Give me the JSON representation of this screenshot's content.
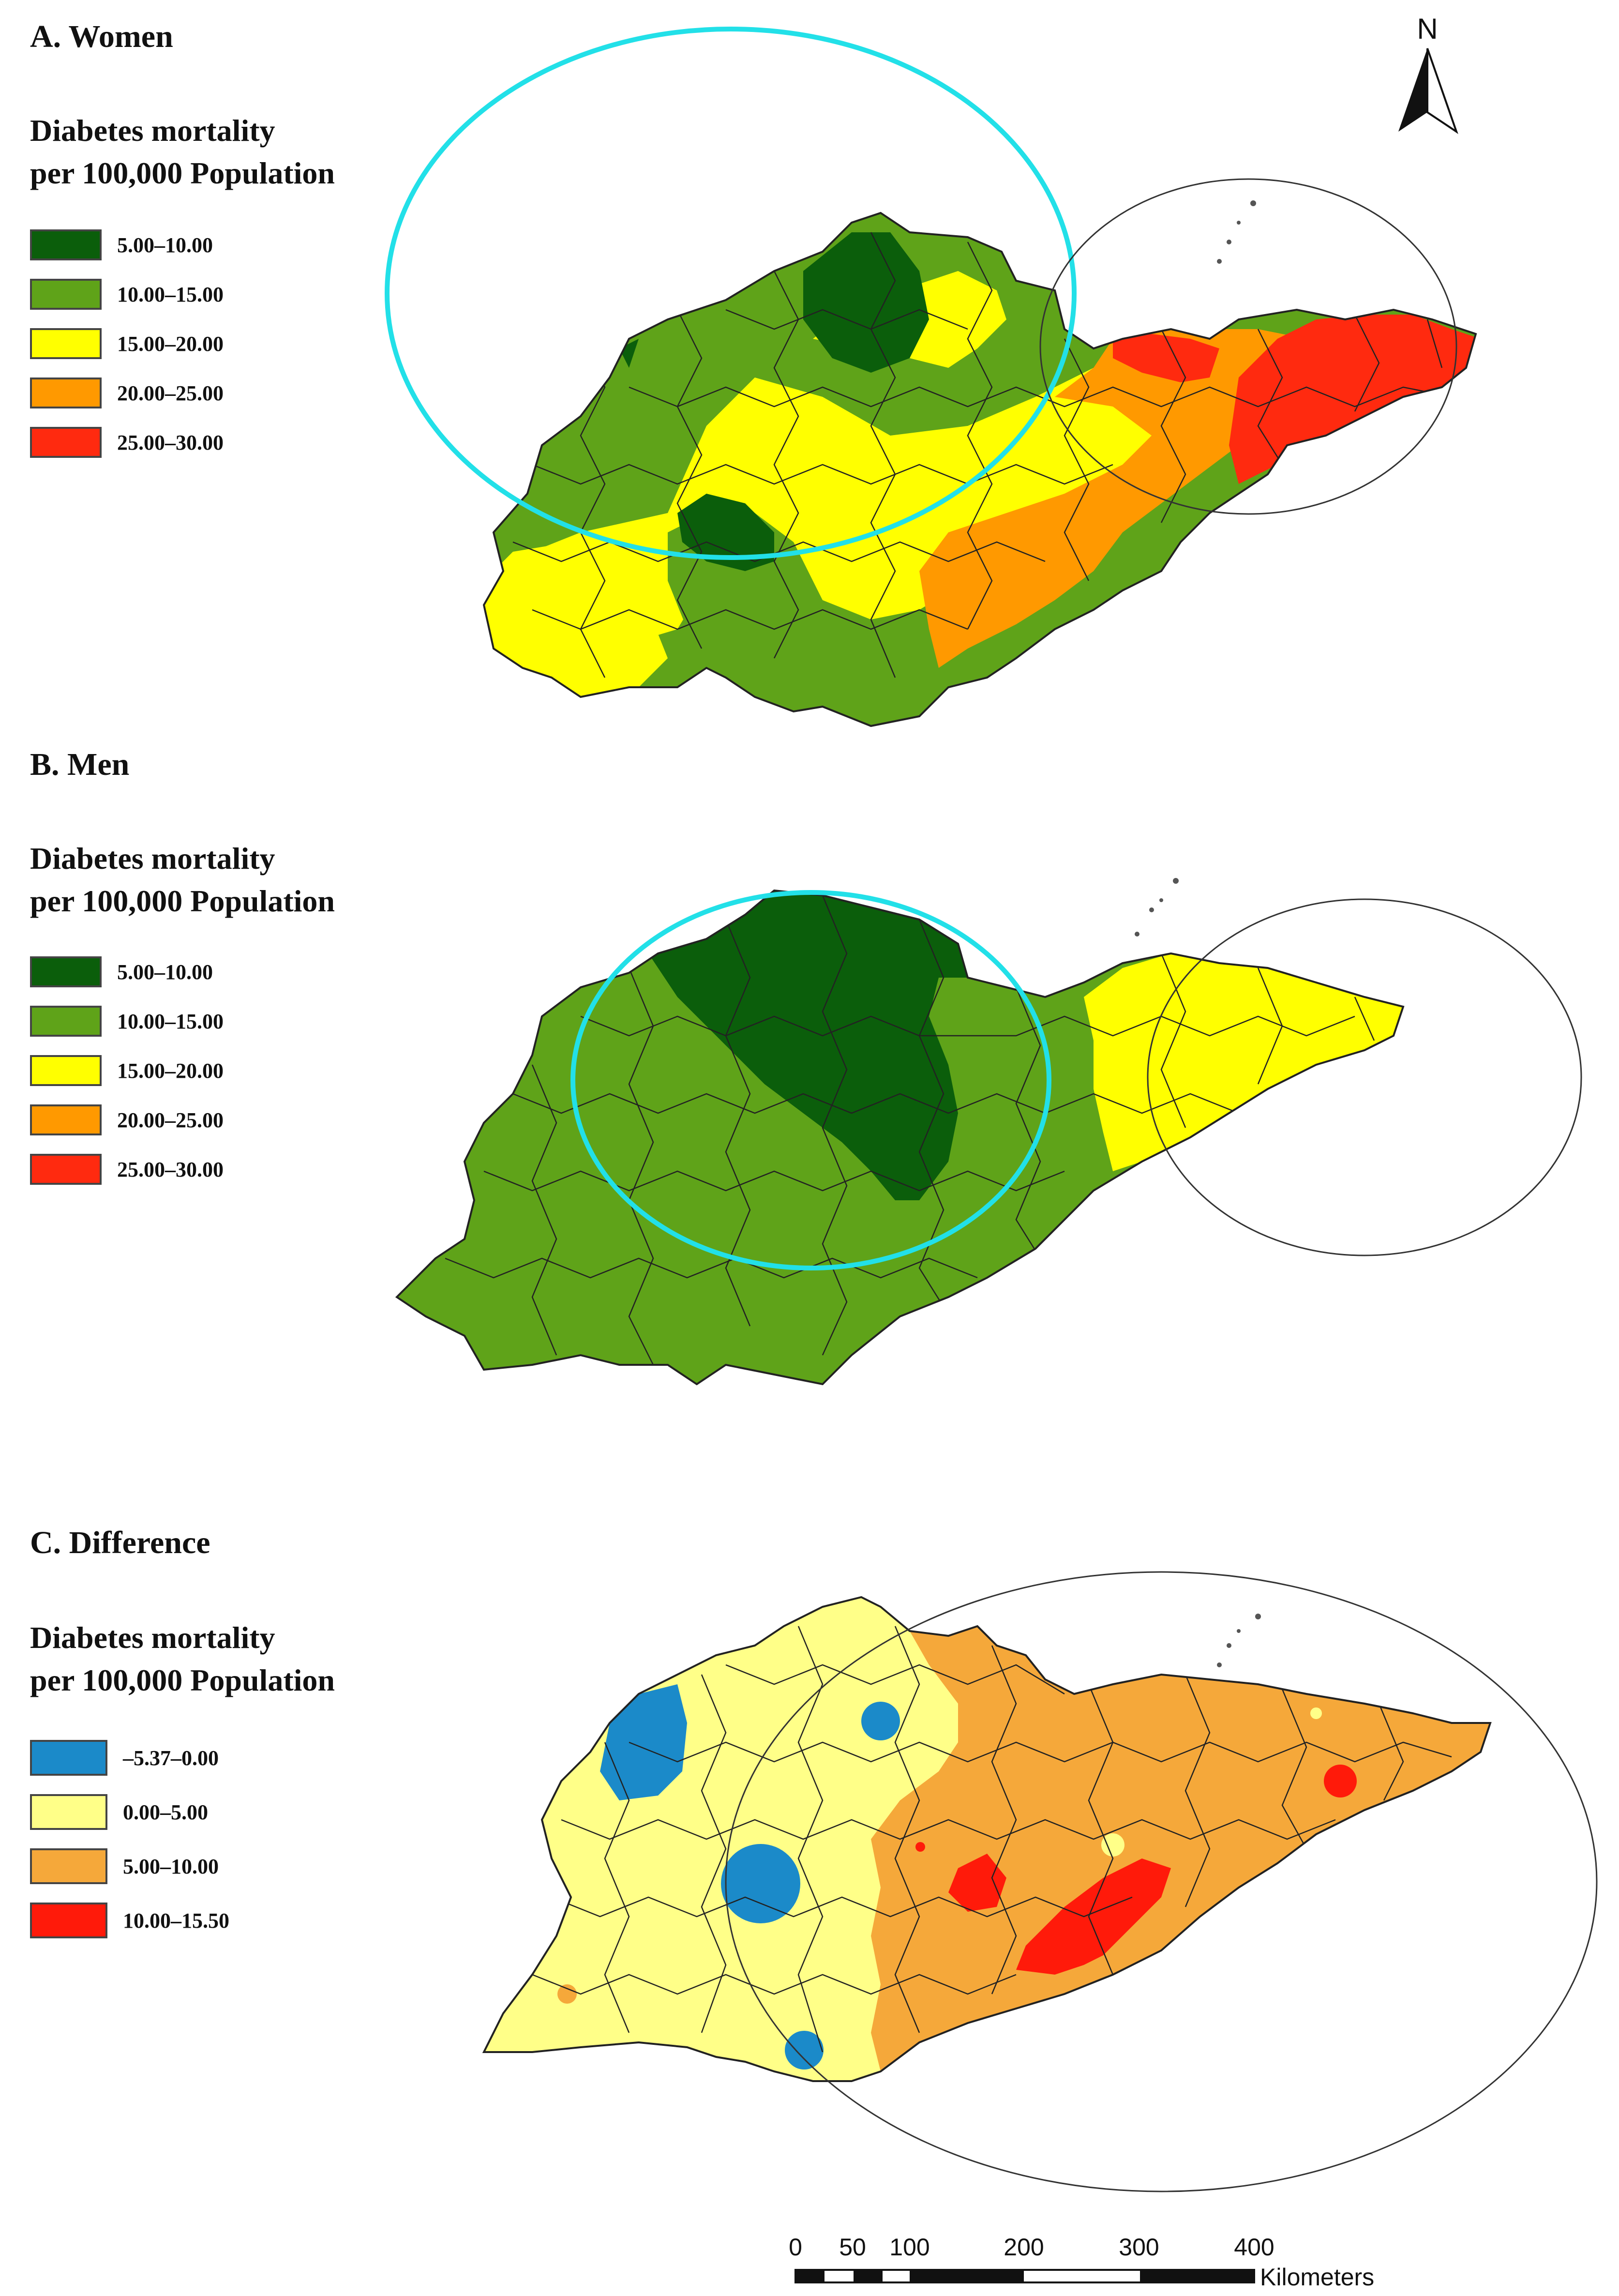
{
  "panels": [
    {
      "title": "A. Women",
      "legend_title_line1": "Diabetes mortality",
      "legend_title_line2": "per 100,000 Population",
      "legend": [
        {
          "label": "5.00–10.00",
          "color": "#0b5e0b"
        },
        {
          "label": "10.00–15.00",
          "color": "#5fa319"
        },
        {
          "label": "15.00–20.00",
          "color": "#ffff00"
        },
        {
          "label": "20.00–25.00",
          "color": "#ff9900"
        },
        {
          "label": "25.00–30.00",
          "color": "#ff2a0f"
        }
      ]
    },
    {
      "title": "B. Men",
      "legend_title_line1": "Diabetes mortality",
      "legend_title_line2": "per 100,000 Population",
      "legend": [
        {
          "label": "5.00–10.00",
          "color": "#0b5e0b"
        },
        {
          "label": "10.00–15.00",
          "color": "#5fa319"
        },
        {
          "label": "15.00–20.00",
          "color": "#ffff00"
        },
        {
          "label": "20.00–25.00",
          "color": "#ff9900"
        },
        {
          "label": "25.00–30.00",
          "color": "#ff2a0f"
        }
      ]
    },
    {
      "title": "C. Difference",
      "legend_title_line1": "Diabetes mortality",
      "legend_title_line2": "per 100,000 Population",
      "legend": [
        {
          "label": "–5.37–0.00",
          "color": "#1b8ac9"
        },
        {
          "label": "0.00–5.00",
          "color": "#ffff88"
        },
        {
          "label": "5.00–10.00",
          "color": "#f5a83a"
        },
        {
          "label": "10.00–15.50",
          "color": "#ff1a0a"
        }
      ]
    }
  ],
  "north_arrow": {
    "label": "N",
    "icon": "north-arrow-icon"
  },
  "scale_bar": {
    "ticks": [
      "0",
      "50",
      "100",
      "200",
      "300",
      "400"
    ],
    "unit": "Kilometers"
  },
  "colors": {
    "highlight_ellipse": "#22e0e8",
    "boundary": "#222222"
  }
}
